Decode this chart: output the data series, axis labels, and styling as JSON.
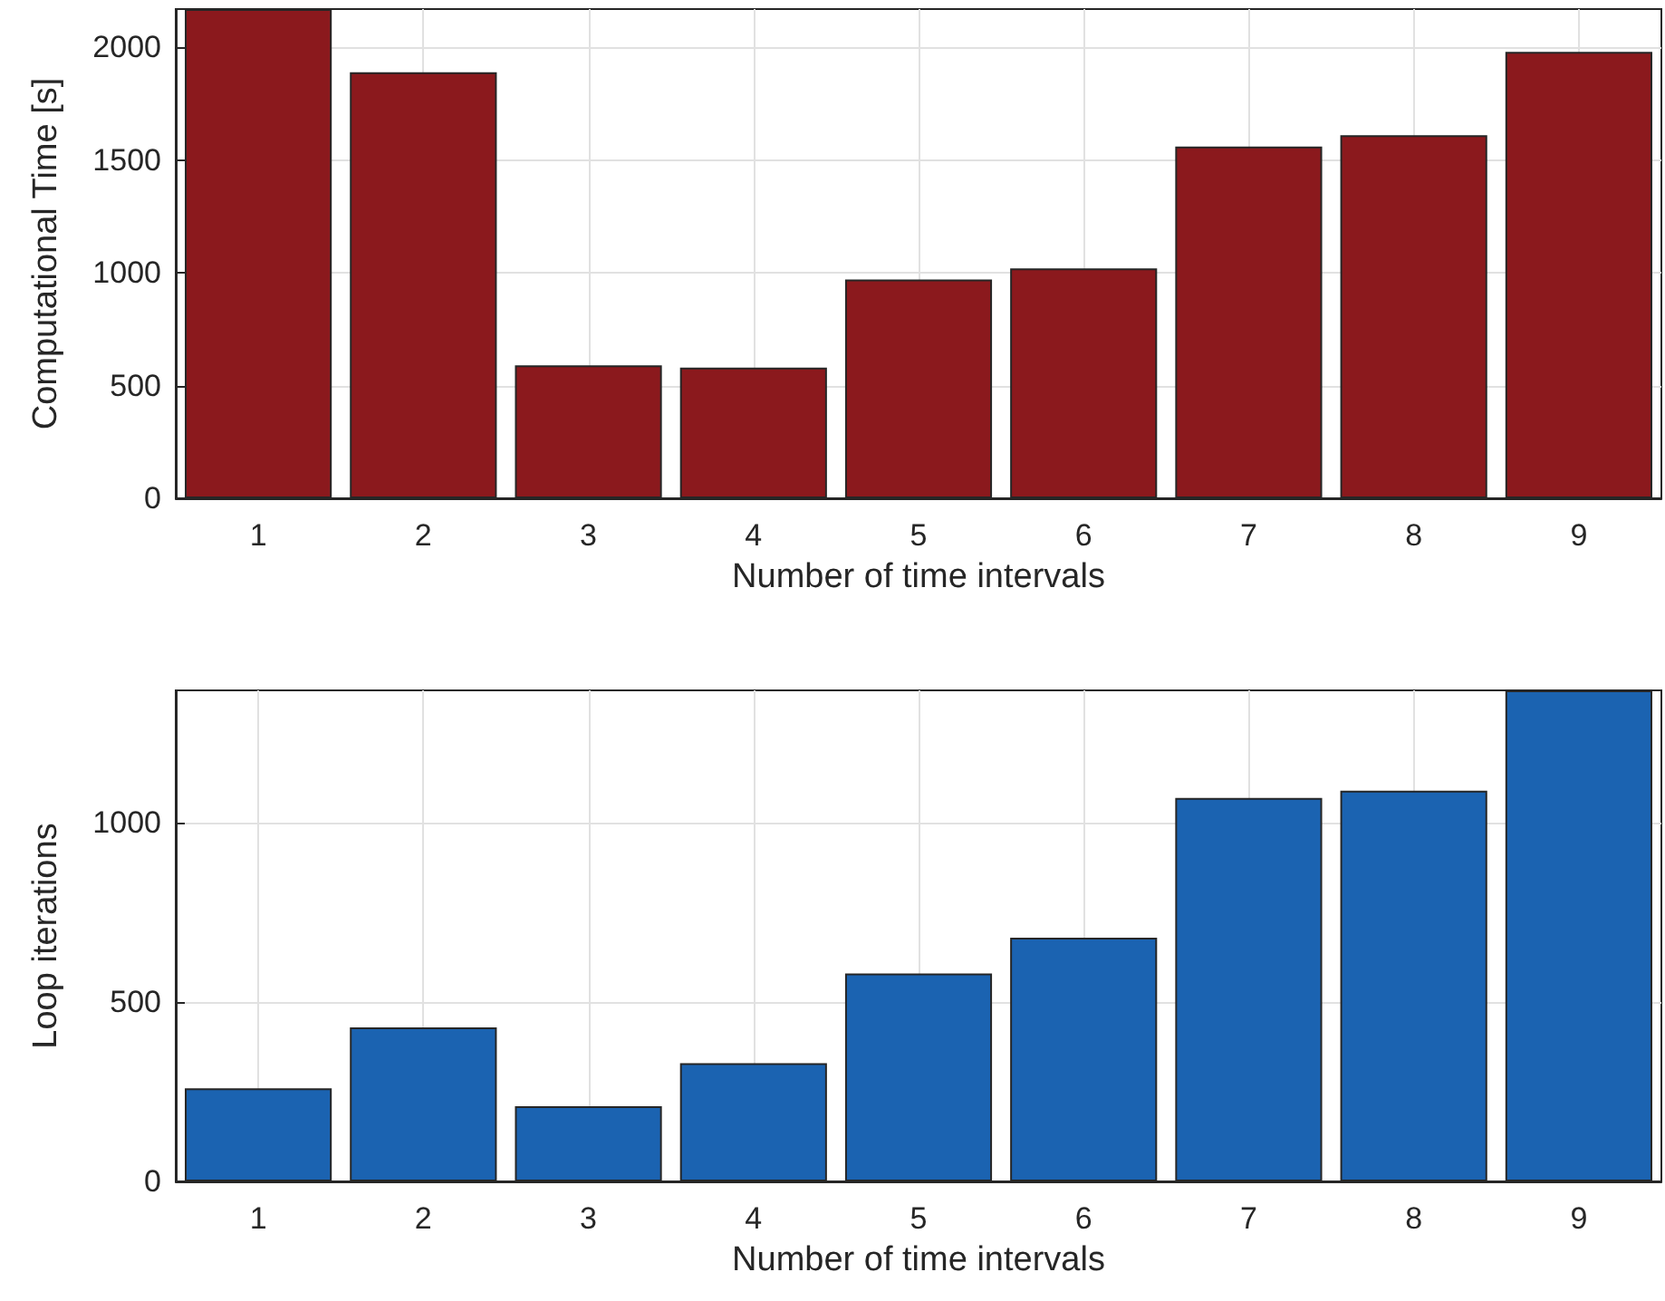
{
  "chart_data": [
    {
      "type": "bar",
      "xlabel": "Number of time intervals",
      "ylabel": "Computational Time [s]",
      "categories": [
        "1",
        "2",
        "3",
        "4",
        "5",
        "6",
        "7",
        "8",
        "9"
      ],
      "values": [
        2170,
        1890,
        590,
        580,
        970,
        1020,
        1560,
        1610,
        1980
      ],
      "color": "#8b191d",
      "ylim": [
        0,
        2170
      ],
      "yticks": [
        0,
        500,
        1000,
        1500,
        2000
      ],
      "grid": true
    },
    {
      "type": "bar",
      "xlabel": "Number of time intervals",
      "ylabel": "Loop iterations",
      "categories": [
        "1",
        "2",
        "3",
        "4",
        "5",
        "6",
        "7",
        "8",
        "9"
      ],
      "values": [
        260,
        430,
        210,
        330,
        580,
        680,
        1070,
        1090,
        1370
      ],
      "color": "#1b63b1",
      "ylim": [
        0,
        1370
      ],
      "yticks": [
        0,
        500,
        1000
      ],
      "grid": true
    }
  ]
}
